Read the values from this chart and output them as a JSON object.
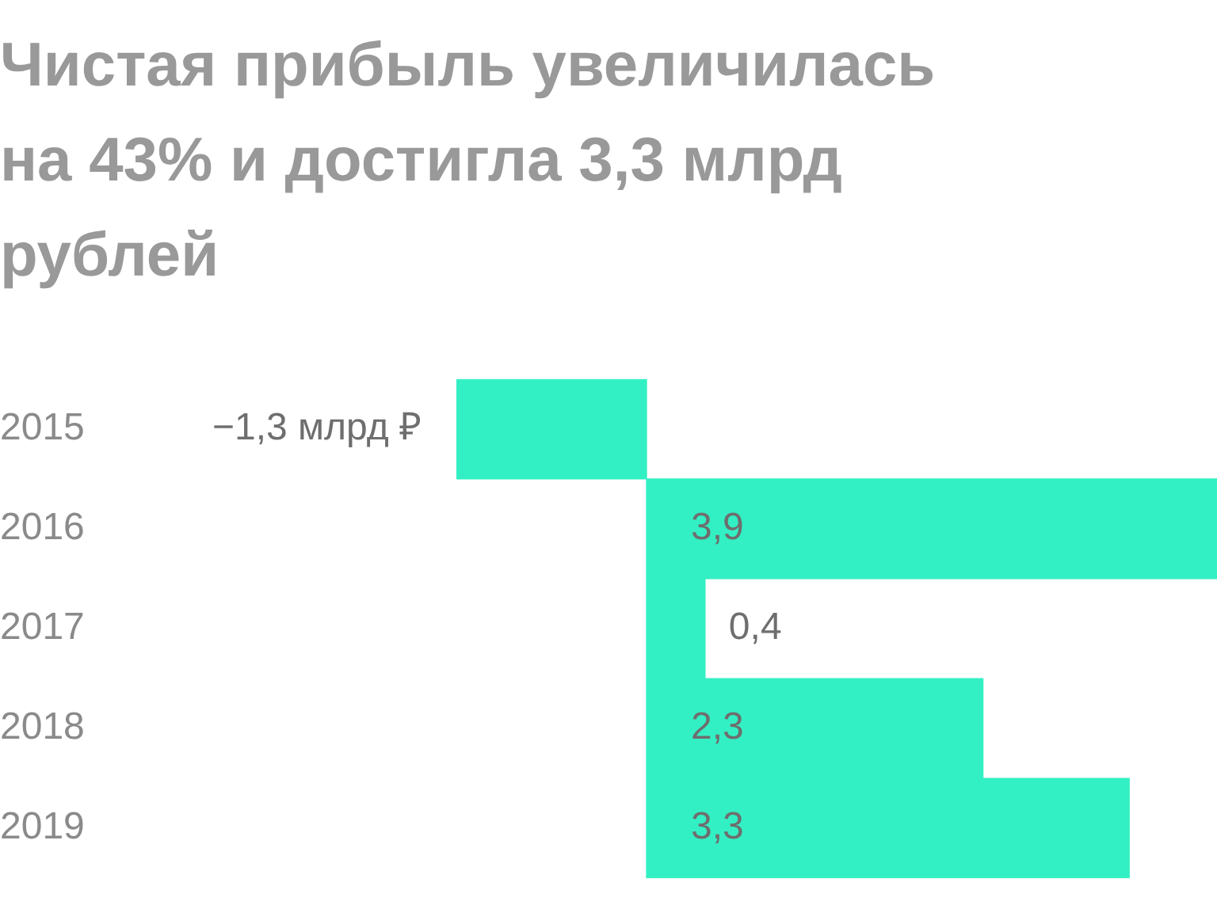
{
  "chart_data": {
    "type": "bar",
    "orientation": "horizontal",
    "title": "Чистая прибыль увеличилась на 43% и достигла 3,3 млрд рублей",
    "categories": [
      "2015",
      "2016",
      "2017",
      "2018",
      "2019"
    ],
    "values": [
      -1.3,
      3.9,
      0.4,
      2.3,
      3.3
    ],
    "value_labels": [
      "−1,3 млрд ₽",
      "3,9",
      "0,4",
      "2,3",
      "3,3"
    ],
    "color": "#33f0c4",
    "legend": false,
    "tick_labels": "y"
  }
}
